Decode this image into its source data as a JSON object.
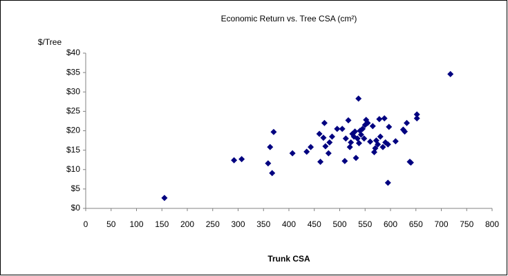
{
  "chart_data": {
    "type": "scatter",
    "title": "Economic Return vs. Tree CSA (cm²)",
    "y_label": "$/Tree",
    "x_label": "Trunk CSA",
    "color": "#000080",
    "grid": false,
    "x": [
      155,
      292,
      307,
      359,
      363,
      367,
      370,
      407,
      435,
      443,
      460,
      462,
      468,
      470,
      472,
      478,
      480,
      485,
      495,
      505,
      510,
      512,
      517,
      520,
      522,
      525,
      528,
      530,
      532,
      535,
      537,
      538,
      540,
      542,
      545,
      548,
      550,
      552,
      555,
      560,
      565,
      568,
      570,
      572,
      575,
      578,
      580,
      585,
      588,
      590,
      595,
      597,
      595,
      610,
      625,
      628,
      632,
      638,
      640,
      652,
      652,
      718
    ],
    "values": [
      2.7,
      12.4,
      12.7,
      11.6,
      15.8,
      9.1,
      19.7,
      14.2,
      14.6,
      15.8,
      19.2,
      12,
      18.2,
      22,
      16,
      14.2,
      17,
      18.5,
      20.5,
      20.5,
      12.2,
      18,
      22.7,
      15.8,
      17,
      19.2,
      18.5,
      19.8,
      13,
      18,
      28.3,
      16.8,
      20,
      19,
      20.5,
      18,
      21.5,
      22.8,
      22,
      17.2,
      21.2,
      14.5,
      15.5,
      17.5,
      16.5,
      23,
      18.5,
      15.8,
      23.2,
      17,
      16.5,
      21,
      6.6,
      17.3,
      20.3,
      19.8,
      22,
      12,
      11.8,
      24.2,
      23.2,
      34.6
    ],
    "xlim": [
      0,
      800
    ],
    "xticks": [
      0,
      50,
      100,
      150,
      200,
      250,
      300,
      350,
      400,
      450,
      500,
      550,
      600,
      650,
      700,
      750,
      800
    ],
    "ylim": [
      0,
      40
    ],
    "yticks": [
      {
        "value": 0,
        "label": "$0"
      },
      {
        "value": 5,
        "label": "$5"
      },
      {
        "value": 10,
        "label": "$10"
      },
      {
        "value": 15,
        "label": "$15"
      },
      {
        "value": 20,
        "label": "$20"
      },
      {
        "value": 25,
        "label": "$25"
      },
      {
        "value": 30,
        "label": "$30"
      },
      {
        "value": 35,
        "label": "$35"
      },
      {
        "value": 40,
        "label": "$40"
      }
    ]
  }
}
